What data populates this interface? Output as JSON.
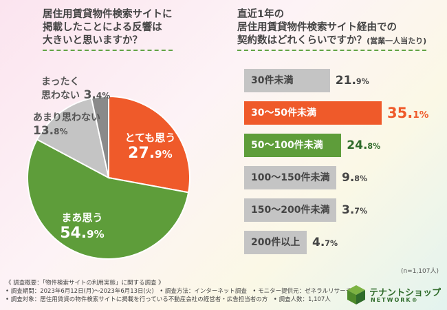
{
  "q1": {
    "title_lines": [
      "居住用賃貸物件検索サイトに",
      "掲載したことによる反響は",
      "大きいと思いますか？"
    ]
  },
  "q2": {
    "title_lines": [
      "直近1年の",
      "居住用賃貸物件検索サイト経由での",
      "契約数はどれくらいですか？"
    ],
    "title_suffix": "(営業一人当たり)"
  },
  "chart_data": [
    {
      "type": "pie",
      "title": "居住用賃貸物件検索サイトに掲載したことによる反響は大きいと思いますか？",
      "series": [
        {
          "label": "とても思う",
          "value": 27.9,
          "display": "27.9",
          "color": "#ef5a2a"
        },
        {
          "label": "まあ思う",
          "value": 54.9,
          "display": "54.9",
          "color": "#5e9d3a"
        },
        {
          "label": "あまり思わない",
          "value": 13.8,
          "display": "13.8",
          "color": "#c4c4c4"
        },
        {
          "label": "まったく思わない",
          "label_lines": [
            "まったく",
            "思わない"
          ],
          "value": 3.4,
          "display": "3.4",
          "color": "#8a8a8a"
        }
      ]
    },
    {
      "type": "bar",
      "title": "直近1年の居住用賃貸物件検索サイト経由での契約数はどれくらいですか？(営業一人当たり)",
      "categories": [
        "30件未満",
        "30〜50件未満",
        "50〜100件未満",
        "100〜150件未満",
        "150〜200件未満",
        "200件以上"
      ],
      "values": [
        21.9,
        35.1,
        24.8,
        9.8,
        3.7,
        4.7
      ],
      "colors": [
        "#c4c4c4",
        "#ef5a2a",
        "#5e9d3a",
        "#c4c4c4",
        "#c4c4c4",
        "#c4c4c4"
      ],
      "label_colors": [
        "#444444",
        "#ffffff",
        "#ffffff",
        "#444444",
        "#444444",
        "#444444"
      ],
      "value_colors": [
        "#444444",
        "#ef5a2a",
        "#2f6b2a",
        "#444444",
        "#444444",
        "#444444"
      ]
    }
  ],
  "sample_note": "(n=1,107人)",
  "footer": {
    "lines": [
      "《 調査概要：「物件検索サイトの利用実態」に関する調査 》",
      "• 調査期間：2023年6月12日(月)～2023年6月13日(火)　• 調査方法：インターネット調査　• モニター提供元：ゼネラルリサーチ",
      "• 調査対象：居住用賃貸の物件検索サイトに掲載を行っている不動産会社の経営者・広告担当者の方　• 調査人数：1,107人"
    ]
  },
  "logo": {
    "name": "テナントショップ",
    "sub": "NETWORK®"
  }
}
